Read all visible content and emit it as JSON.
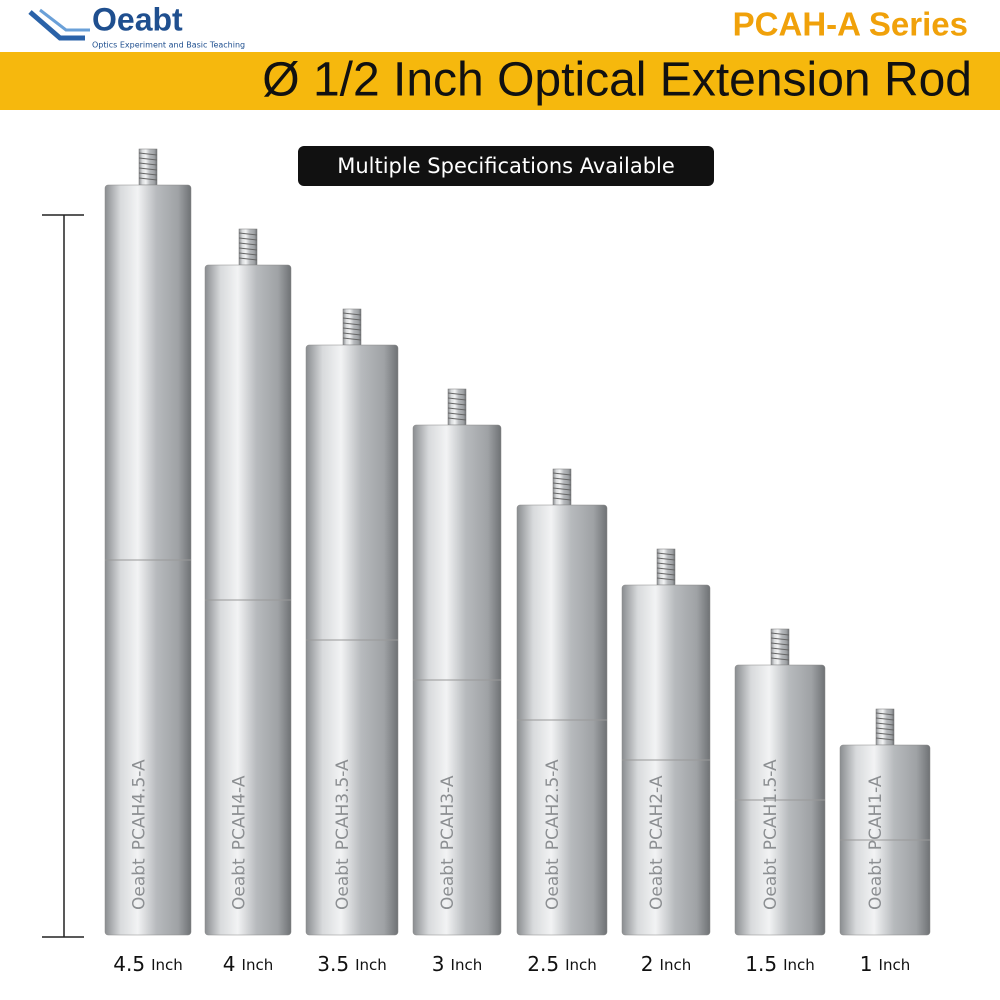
{
  "header": {
    "logo": "Oeabt",
    "tagline": "Optics Experiment and Basic Teaching",
    "series": "PCAH-A Series",
    "title": "Ø 1/2 Inch Optical Extension Rod"
  },
  "badge": "Multiple Specifications Available",
  "unit": "Inch",
  "engraving_brand": "Oeabt",
  "rods": [
    {
      "length": 4.5,
      "model": "PCAH4.5-A"
    },
    {
      "length": 4,
      "model": "PCAH4-A"
    },
    {
      "length": 3.5,
      "model": "PCAH3.5-A"
    },
    {
      "length": 3,
      "model": "PCAH3-A"
    },
    {
      "length": 2.5,
      "model": "PCAH2.5-A"
    },
    {
      "length": 2,
      "model": "PCAH2-A"
    },
    {
      "length": 1.5,
      "model": "PCAH1.5-A"
    },
    {
      "length": 1,
      "model": "PCAH1-A"
    }
  ]
}
